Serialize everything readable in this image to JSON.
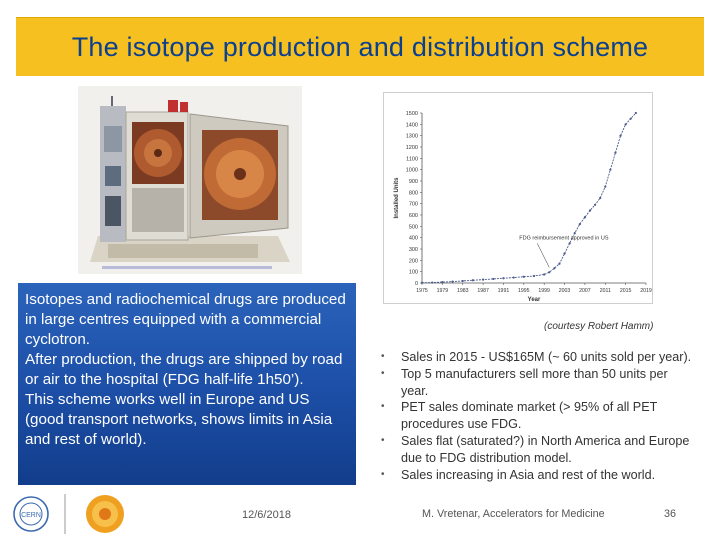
{
  "slide": {
    "title": "The isotope production and distribution scheme",
    "paragraph": [
      "Isotopes and radiochemical drugs are produced in large centres equipped with a commercial cyclotron.",
      "After production, the drugs are shipped by road or air to the hospital (FDG half-life 1h50’).",
      "This scheme works well in Europe and US (good transport networks, shows limits in Asia and rest of world)."
    ],
    "courtesy": "(courtesy Robert Hamm)",
    "bullets": [
      "Sales in 2015 - US$165M  (~ 60 units sold per year).",
      "Top 5 manufacturers sell more than 50 units per year.",
      "PET sales dominate market (> 95% of all PET procedures use FDG.",
      "Sales flat (saturated?) in North America and Europe due to FDG distribution model.",
      "Sales increasing in Asia and rest of the world."
    ],
    "date": "12/6/2018",
    "footer": "M. Vretenar, Accelerators for Medicine",
    "page_number": "36"
  },
  "icons": {
    "photo": "cyclotron-photo",
    "logo1": "cern-logo",
    "logo2": "conference-logo"
  },
  "chart_data": {
    "type": "line",
    "ylabel": "Installed Units",
    "xlabel": "Year",
    "x_ticks": [
      "1975",
      "1979",
      "1983",
      "1987",
      "1991",
      "1995",
      "1999",
      "2003",
      "2007",
      "2011",
      "2015",
      "2019"
    ],
    "y_ticks": [
      0,
      100,
      200,
      300,
      400,
      500,
      600,
      700,
      800,
      900,
      1000,
      1100,
      1200,
      1300,
      1400,
      1500
    ],
    "ylim": [
      0,
      1500
    ],
    "xlim": [
      1975,
      2019
    ],
    "annotation": "FDG reimbursement approved in US",
    "annotation_at": [
      2000,
      120
    ],
    "series": [
      {
        "x": [
          1975,
          1977,
          1979,
          1981,
          1983,
          1985,
          1987,
          1989,
          1991,
          1993,
          1995,
          1997,
          1999,
          2000,
          2001,
          2002,
          2003,
          2004,
          2005,
          2006,
          2007,
          2008,
          2009,
          2010,
          2011,
          2012,
          2013,
          2014,
          2015,
          2016,
          2017
        ],
        "y": [
          2,
          4,
          8,
          12,
          18,
          24,
          30,
          36,
          42,
          48,
          55,
          62,
          75,
          95,
          130,
          170,
          260,
          350,
          440,
          520,
          580,
          640,
          690,
          750,
          850,
          1000,
          1150,
          1300,
          1400,
          1450,
          1500
        ],
        "color": "#4a5a8a"
      }
    ]
  }
}
